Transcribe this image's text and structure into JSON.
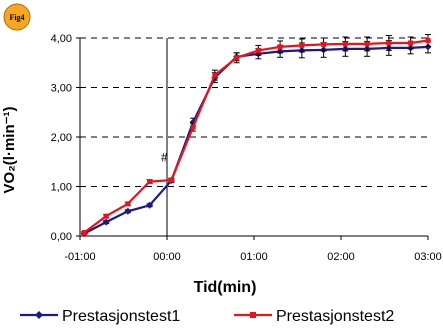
{
  "badge": {
    "label": "Fig4",
    "fill": "#f5a623"
  },
  "chart_data": {
    "type": "line",
    "xlabel": "Tid(min)",
    "ylabel": "VO₂(l·min⁻¹)",
    "x_ticks": [
      "-01:00",
      "00:00",
      "01:00",
      "02:00",
      "03:00"
    ],
    "x_tick_values": [
      -60,
      0,
      60,
      120,
      180
    ],
    "xlim": [
      -60,
      180
    ],
    "y_ticks": [
      "0,00",
      "1,00",
      "2,00",
      "3,00",
      "4,00"
    ],
    "y_tick_values": [
      0,
      1,
      2,
      3,
      4
    ],
    "ylim": [
      0,
      4
    ],
    "grid": "horizontal dashed",
    "legend_position": "bottom",
    "annotations": [
      {
        "text": "#",
        "x": 0,
        "y": 1.1
      }
    ],
    "series": [
      {
        "name": "Prestasjonstest1",
        "color": "#1a1a8c",
        "marker": "diamond",
        "x": [
          -57,
          -42,
          -27,
          -12,
          3,
          18,
          33,
          48,
          63,
          78,
          93,
          108,
          123,
          138,
          153,
          168,
          180
        ],
        "y": [
          0.05,
          0.28,
          0.5,
          0.62,
          1.12,
          2.3,
          3.2,
          3.62,
          3.68,
          3.73,
          3.75,
          3.76,
          3.78,
          3.78,
          3.8,
          3.8,
          3.82
        ],
        "err": [
          0.02,
          0.03,
          0.03,
          0.03,
          0.04,
          0.08,
          0.1,
          0.08,
          0.1,
          0.12,
          0.15,
          0.15,
          0.15,
          0.15,
          0.15,
          0.12,
          0.12
        ]
      },
      {
        "name": "Prestasjonstest2",
        "color": "#e8141a",
        "marker": "square",
        "x": [
          -57,
          -42,
          -27,
          -12,
          3,
          18,
          33,
          48,
          63,
          78,
          93,
          108,
          123,
          138,
          153,
          168,
          180
        ],
        "y": [
          0.07,
          0.4,
          0.65,
          1.1,
          1.13,
          2.2,
          3.25,
          3.6,
          3.75,
          3.82,
          3.85,
          3.87,
          3.88,
          3.88,
          3.9,
          3.9,
          3.95
        ],
        "err": [
          0.02,
          0.03,
          0.03,
          0.04,
          0.04,
          0.08,
          0.1,
          0.1,
          0.1,
          0.12,
          0.13,
          0.13,
          0.14,
          0.14,
          0.15,
          0.12,
          0.12
        ]
      }
    ]
  }
}
